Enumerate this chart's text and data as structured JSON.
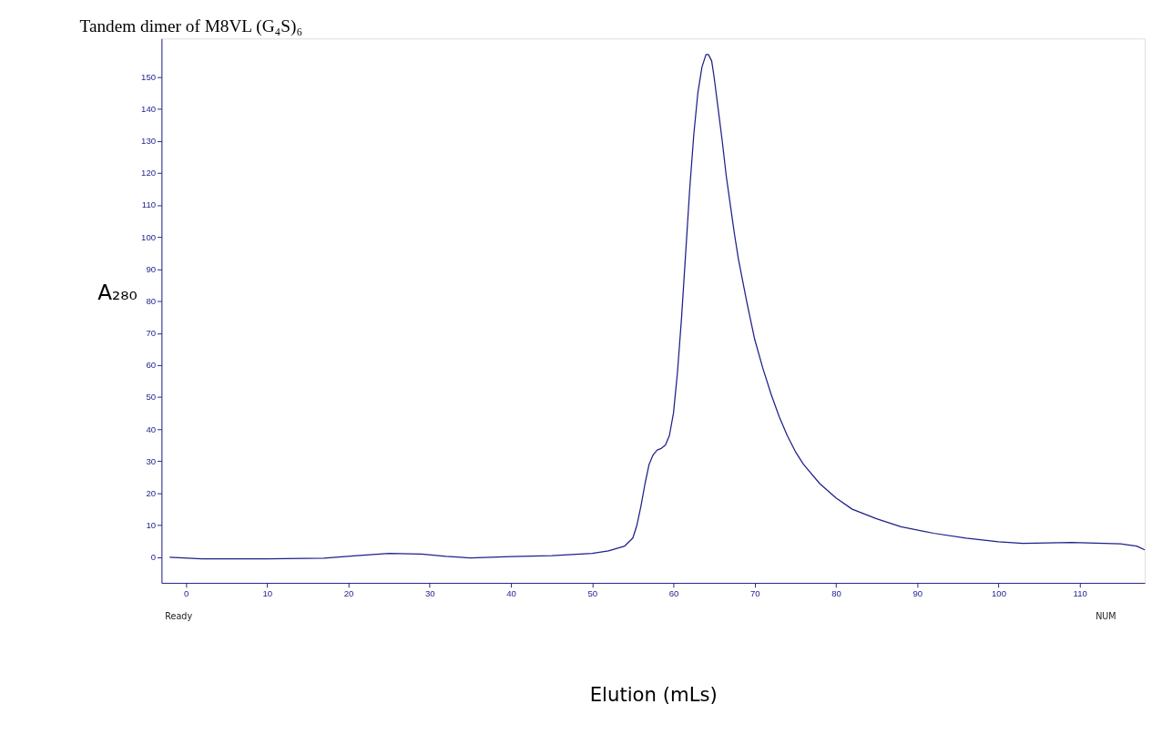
{
  "chart_data": {
    "type": "line",
    "title": "Tandem dimer of M8VL (G₄S)₆",
    "xlabel": "Elution (mLs)",
    "ylabel": "A₂₈₀",
    "x": [
      -2,
      2,
      10,
      17,
      21,
      25,
      29,
      32,
      35,
      40,
      45,
      50,
      52,
      54,
      55,
      55.5,
      56,
      56.5,
      57,
      57.5,
      58,
      58.5,
      59,
      59.5,
      60,
      60.5,
      61,
      61.5,
      62,
      62.5,
      63,
      63.5,
      64,
      64.3,
      64.7,
      65,
      65.5,
      66,
      66.5,
      67,
      67.5,
      68,
      69,
      70,
      71,
      72,
      73,
      74,
      75,
      76,
      78,
      80,
      82,
      85,
      88,
      92,
      96,
      100,
      103,
      106,
      109,
      112,
      115,
      117,
      118
    ],
    "series": [
      {
        "color": "#1f1f8a",
        "values": [
          0,
          -0.5,
          -0.5,
          -0.3,
          0.5,
          1.2,
          1,
          0.3,
          -0.2,
          0.2,
          0.5,
          1.2,
          2,
          3.5,
          6,
          10,
          16,
          23,
          29,
          32,
          33.5,
          34,
          35,
          38,
          45,
          58,
          75,
          95,
          115,
          132,
          145,
          153,
          157,
          157,
          155,
          150,
          140,
          130,
          119,
          110,
          101,
          93,
          80,
          68,
          59,
          51,
          44,
          38,
          33,
          29,
          23,
          18.5,
          15,
          12,
          9.5,
          7.5,
          6,
          4.8,
          4.3,
          4.5,
          4.6,
          4.4,
          4.2,
          3.5,
          2.3
        ]
      }
    ],
    "xlim": [
      -3,
      118
    ],
    "xticks": [
      0,
      10,
      20,
      30,
      40,
      50,
      60,
      70,
      80,
      90,
      100,
      110
    ],
    "ylim": [
      -8,
      162
    ],
    "yticks": [
      0,
      10,
      20,
      30,
      40,
      50,
      60,
      70,
      80,
      90,
      100,
      110,
      120,
      130,
      140,
      150
    ],
    "grid": false,
    "marker": "none",
    "line_style": "solid",
    "annotations": [
      "Ready",
      "NUM"
    ]
  }
}
